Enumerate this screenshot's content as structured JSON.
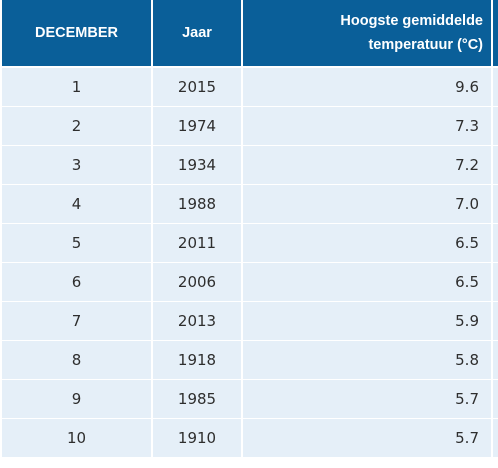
{
  "table": {
    "header": {
      "rank": "DECEMBER",
      "year": "Jaar",
      "temp_line1": "Hoogste gemiddelde",
      "temp_line2": "temperatuur (°C)"
    },
    "rows": [
      {
        "rank": "1",
        "year": "2015",
        "temp": "9.6"
      },
      {
        "rank": "2",
        "year": "1974",
        "temp": "7.3"
      },
      {
        "rank": "3",
        "year": "1934",
        "temp": "7.2"
      },
      {
        "rank": "4",
        "year": "1988",
        "temp": "7.0"
      },
      {
        "rank": "5",
        "year": "2011",
        "temp": "6.5"
      },
      {
        "rank": "6",
        "year": "2006",
        "temp": "6.5"
      },
      {
        "rank": "7",
        "year": "2013",
        "temp": "5.9"
      },
      {
        "rank": "8",
        "year": "1918",
        "temp": "5.8"
      },
      {
        "rank": "9",
        "year": "1985",
        "temp": "5.7"
      },
      {
        "rank": "10",
        "year": "1910",
        "temp": "5.7"
      }
    ],
    "colors": {
      "header_bg": "#0a5f99",
      "header_text": "#ffffff",
      "row_bg": "#e5eff8",
      "row_text": "#2e2e2e"
    }
  }
}
